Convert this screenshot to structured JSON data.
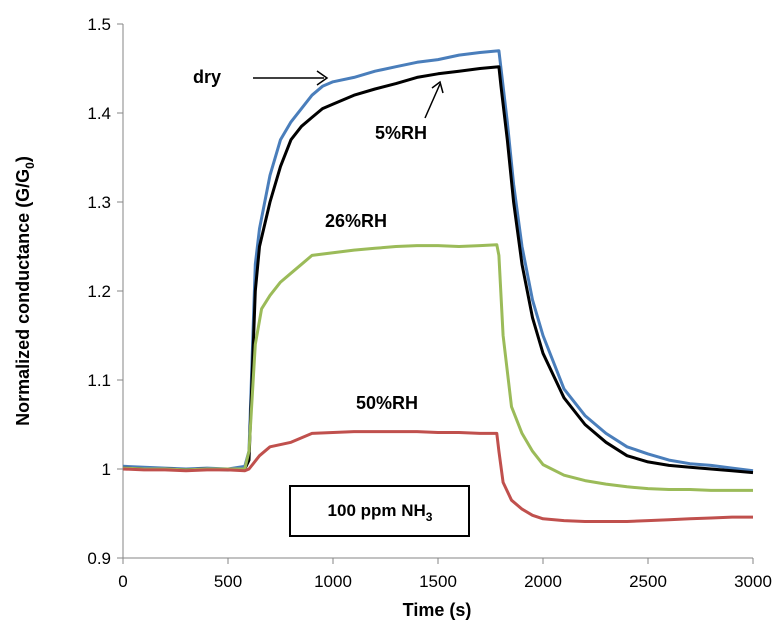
{
  "chart_data": {
    "type": "line",
    "xlabel": "Time (s)",
    "ylabel": {
      "main": "Normalized conductance (G/G",
      "sub": "0",
      "end": ")"
    },
    "xlim": [
      0,
      3000
    ],
    "ylim": [
      0.9,
      1.5
    ],
    "xticks": [
      "0",
      "500",
      "1000",
      "1500",
      "2000",
      "2500",
      "3000"
    ],
    "yticks": [
      "0.9",
      "1",
      "1.1",
      "1.2",
      "1.3",
      "1.4",
      "1.5"
    ],
    "grid": false,
    "legend": "none",
    "annotations": {
      "dry": "dry",
      "rh5": "5%RH",
      "rh26": "26%RH",
      "rh50": "50%RH"
    },
    "inset_box": {
      "text": "100 ppm NH",
      "sub": "3"
    },
    "series": [
      {
        "key": "dry",
        "color": "#4a7ebb",
        "points": [
          [
            0,
            1.003
          ],
          [
            100,
            1.002
          ],
          [
            200,
            1.001
          ],
          [
            300,
            1.0
          ],
          [
            400,
            1.001
          ],
          [
            500,
            1.0
          ],
          [
            580,
            1.003
          ],
          [
            600,
            1.02
          ],
          [
            630,
            1.23
          ],
          [
            650,
            1.27
          ],
          [
            700,
            1.33
          ],
          [
            750,
            1.37
          ],
          [
            800,
            1.39
          ],
          [
            850,
            1.405
          ],
          [
            900,
            1.42
          ],
          [
            950,
            1.43
          ],
          [
            1000,
            1.435
          ],
          [
            1100,
            1.44
          ],
          [
            1200,
            1.447
          ],
          [
            1300,
            1.452
          ],
          [
            1400,
            1.457
          ],
          [
            1500,
            1.46
          ],
          [
            1600,
            1.465
          ],
          [
            1700,
            1.468
          ],
          [
            1790,
            1.47
          ],
          [
            1800,
            1.45
          ],
          [
            1830,
            1.39
          ],
          [
            1860,
            1.32
          ],
          [
            1900,
            1.25
          ],
          [
            1950,
            1.19
          ],
          [
            2000,
            1.15
          ],
          [
            2100,
            1.09
          ],
          [
            2200,
            1.06
          ],
          [
            2300,
            1.04
          ],
          [
            2400,
            1.025
          ],
          [
            2500,
            1.017
          ],
          [
            2600,
            1.01
          ],
          [
            2700,
            1.006
          ],
          [
            2800,
            1.004
          ],
          [
            2900,
            1.001
          ],
          [
            3000,
            0.998
          ]
        ]
      },
      {
        "key": "5%RH",
        "color": "#000000",
        "points": [
          [
            0,
            1.001
          ],
          [
            100,
            1.0
          ],
          [
            200,
            1.0
          ],
          [
            300,
            0.999
          ],
          [
            400,
            1.0
          ],
          [
            500,
            0.999
          ],
          [
            580,
            1.0
          ],
          [
            600,
            1.01
          ],
          [
            630,
            1.2
          ],
          [
            650,
            1.25
          ],
          [
            700,
            1.3
          ],
          [
            750,
            1.34
          ],
          [
            800,
            1.37
          ],
          [
            850,
            1.385
          ],
          [
            900,
            1.395
          ],
          [
            950,
            1.405
          ],
          [
            1000,
            1.41
          ],
          [
            1100,
            1.42
          ],
          [
            1200,
            1.427
          ],
          [
            1300,
            1.433
          ],
          [
            1400,
            1.44
          ],
          [
            1500,
            1.444
          ],
          [
            1600,
            1.447
          ],
          [
            1700,
            1.45
          ],
          [
            1790,
            1.452
          ],
          [
            1800,
            1.43
          ],
          [
            1830,
            1.37
          ],
          [
            1860,
            1.3
          ],
          [
            1900,
            1.23
          ],
          [
            1950,
            1.17
          ],
          [
            2000,
            1.13
          ],
          [
            2100,
            1.08
          ],
          [
            2200,
            1.05
          ],
          [
            2300,
            1.03
          ],
          [
            2400,
            1.015
          ],
          [
            2500,
            1.008
          ],
          [
            2600,
            1.004
          ],
          [
            2700,
            1.002
          ],
          [
            2800,
            1.0
          ],
          [
            2900,
            0.998
          ],
          [
            3000,
            0.996
          ]
        ]
      },
      {
        "key": "26%RH",
        "color": "#9bbb59",
        "points": [
          [
            0,
            1.001
          ],
          [
            100,
            1.0
          ],
          [
            200,
            1.0
          ],
          [
            300,
            0.999
          ],
          [
            400,
            1.0
          ],
          [
            500,
            1.0
          ],
          [
            580,
            1.0
          ],
          [
            600,
            1.02
          ],
          [
            630,
            1.14
          ],
          [
            660,
            1.18
          ],
          [
            700,
            1.195
          ],
          [
            750,
            1.21
          ],
          [
            800,
            1.22
          ],
          [
            850,
            1.23
          ],
          [
            900,
            1.24
          ],
          [
            1000,
            1.243
          ],
          [
            1100,
            1.246
          ],
          [
            1200,
            1.248
          ],
          [
            1300,
            1.25
          ],
          [
            1400,
            1.251
          ],
          [
            1500,
            1.251
          ],
          [
            1600,
            1.25
          ],
          [
            1700,
            1.251
          ],
          [
            1780,
            1.252
          ],
          [
            1790,
            1.24
          ],
          [
            1810,
            1.15
          ],
          [
            1850,
            1.07
          ],
          [
            1900,
            1.04
          ],
          [
            1950,
            1.02
          ],
          [
            2000,
            1.005
          ],
          [
            2100,
            0.993
          ],
          [
            2200,
            0.987
          ],
          [
            2300,
            0.983
          ],
          [
            2400,
            0.98
          ],
          [
            2500,
            0.978
          ],
          [
            2600,
            0.977
          ],
          [
            2700,
            0.977
          ],
          [
            2800,
            0.976
          ],
          [
            2900,
            0.976
          ],
          [
            3000,
            0.976
          ]
        ]
      },
      {
        "key": "50%RH",
        "color": "#c0504d",
        "points": [
          [
            0,
            1.0
          ],
          [
            100,
            0.999
          ],
          [
            200,
            0.999
          ],
          [
            300,
            0.998
          ],
          [
            400,
            0.999
          ],
          [
            500,
            0.999
          ],
          [
            580,
            0.998
          ],
          [
            600,
            1.0
          ],
          [
            650,
            1.015
          ],
          [
            700,
            1.025
          ],
          [
            800,
            1.03
          ],
          [
            900,
            1.04
          ],
          [
            1000,
            1.041
          ],
          [
            1100,
            1.042
          ],
          [
            1200,
            1.042
          ],
          [
            1300,
            1.042
          ],
          [
            1400,
            1.042
          ],
          [
            1500,
            1.041
          ],
          [
            1600,
            1.041
          ],
          [
            1700,
            1.04
          ],
          [
            1780,
            1.04
          ],
          [
            1790,
            1.02
          ],
          [
            1810,
            0.985
          ],
          [
            1850,
            0.965
          ],
          [
            1900,
            0.955
          ],
          [
            1950,
            0.948
          ],
          [
            2000,
            0.944
          ],
          [
            2100,
            0.942
          ],
          [
            2200,
            0.941
          ],
          [
            2300,
            0.941
          ],
          [
            2400,
            0.941
          ],
          [
            2500,
            0.942
          ],
          [
            2600,
            0.943
          ],
          [
            2700,
            0.944
          ],
          [
            2800,
            0.945
          ],
          [
            2900,
            0.946
          ],
          [
            3000,
            0.946
          ]
        ]
      }
    ]
  }
}
